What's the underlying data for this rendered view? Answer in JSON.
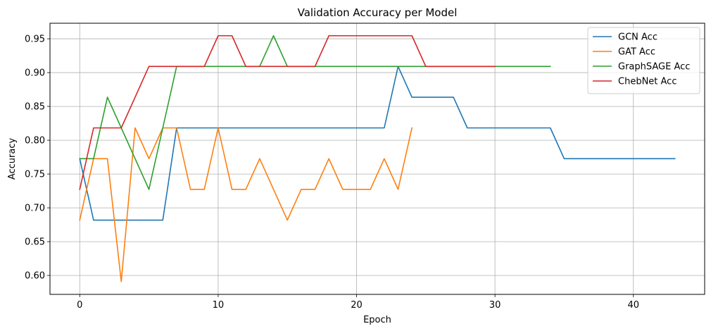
{
  "chart_data": {
    "type": "line",
    "title": "Validation Accuracy per Model",
    "xlabel": "Epoch",
    "ylabel": "Accuracy",
    "xlim": [
      -2.15,
      45.15
    ],
    "ylim": [
      0.572,
      0.973
    ],
    "xticks": [
      0,
      10,
      20,
      30,
      40
    ],
    "yticks": [
      0.6,
      0.65,
      0.7,
      0.75,
      0.8,
      0.85,
      0.9,
      0.95
    ],
    "ytick_labels": [
      "0.60",
      "0.65",
      "0.70",
      "0.75",
      "0.80",
      "0.85",
      "0.90",
      "0.95"
    ],
    "grid": true,
    "legend_position": "upper right",
    "series": [
      {
        "name": "GCN Acc",
        "color": "#1f77b4",
        "values": [
          0.7727,
          0.6818,
          0.6818,
          0.6818,
          0.6818,
          0.6818,
          0.6818,
          0.8182,
          0.8182,
          0.8182,
          0.8182,
          0.8182,
          0.8182,
          0.8182,
          0.8182,
          0.8182,
          0.8182,
          0.8182,
          0.8182,
          0.8182,
          0.8182,
          0.8182,
          0.8182,
          0.9091,
          0.8636,
          0.8636,
          0.8636,
          0.8636,
          0.8182,
          0.8182,
          0.8182,
          0.8182,
          0.8182,
          0.8182,
          0.8182,
          0.7727,
          0.7727,
          0.7727,
          0.7727,
          0.7727,
          0.7727,
          0.7727,
          0.7727,
          0.7727
        ]
      },
      {
        "name": "GAT Acc",
        "color": "#ff7f0e",
        "values": [
          0.6818,
          0.7727,
          0.7727,
          0.5909,
          0.8182,
          0.7727,
          0.8182,
          0.8182,
          0.7273,
          0.7273,
          0.8182,
          0.7273,
          0.7273,
          0.7727,
          0.7273,
          0.6818,
          0.7273,
          0.7273,
          0.7727,
          0.7273,
          0.7273,
          0.7273,
          0.7727,
          0.7273,
          0.8182
        ]
      },
      {
        "name": "GraphSAGE Acc",
        "color": "#2ca02c",
        "values": [
          0.7727,
          0.7727,
          0.8636,
          0.8182,
          0.7727,
          0.7273,
          0.8182,
          0.9091,
          0.9091,
          0.9091,
          0.9091,
          0.9091,
          0.9091,
          0.9091,
          0.9545,
          0.9091,
          0.9091,
          0.9091,
          0.9091,
          0.9091,
          0.9091,
          0.9091,
          0.9091,
          0.9091,
          0.9091,
          0.9091,
          0.9091,
          0.9091,
          0.9091,
          0.9091,
          0.9091,
          0.9091,
          0.9091,
          0.9091,
          0.9091
        ]
      },
      {
        "name": "ChebNet Acc",
        "color": "#d62728",
        "values": [
          0.7273,
          0.8182,
          0.8182,
          0.8182,
          0.8636,
          0.9091,
          0.9091,
          0.9091,
          0.9091,
          0.9091,
          0.9545,
          0.9545,
          0.9091,
          0.9091,
          0.9091,
          0.9091,
          0.9091,
          0.9091,
          0.9545,
          0.9545,
          0.9545,
          0.9545,
          0.9545,
          0.9545,
          0.9545,
          0.9091,
          0.9091,
          0.9091,
          0.9091,
          0.9091,
          0.9091
        ]
      }
    ]
  }
}
